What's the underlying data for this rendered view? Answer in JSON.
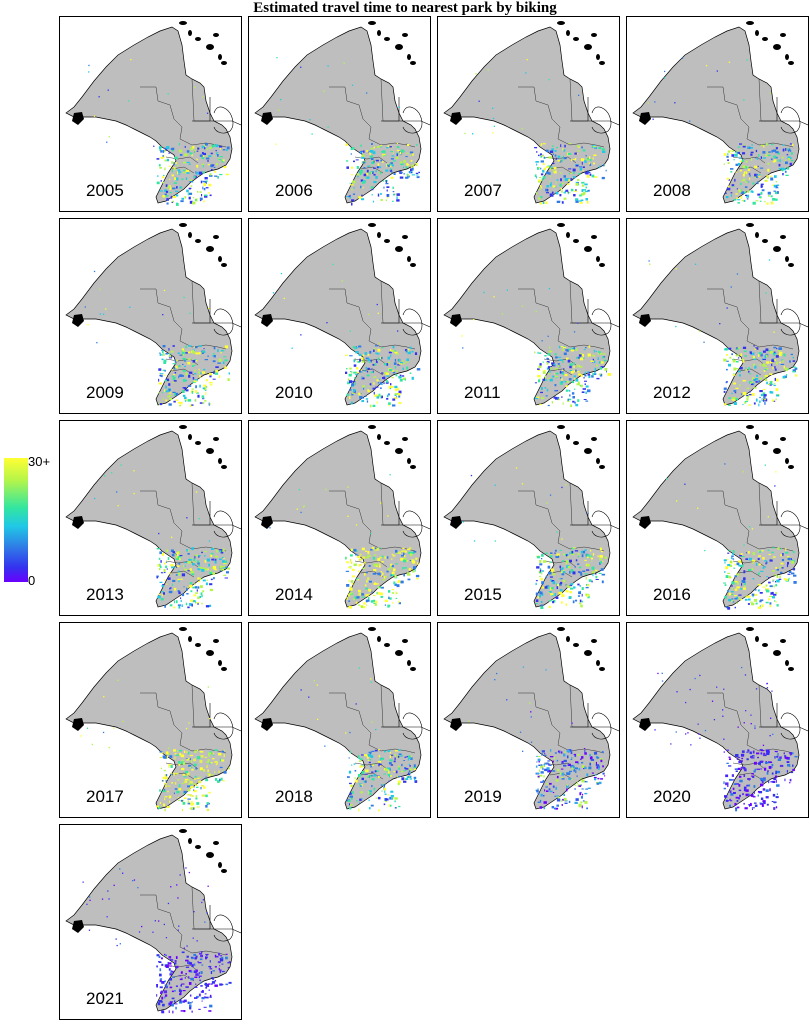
{
  "title": "Estimated travel time to nearest park by biking",
  "legend": {
    "max_label": "30+",
    "min_label": "0",
    "colors": [
      "#ffff33",
      "#33e6a0",
      "#2f7be6",
      "#6a00ff"
    ]
  },
  "colors": {
    "land": "#bebebe",
    "province_border": "#000000",
    "water_background": "#ffffff"
  },
  "panels": [
    {
      "year": "2005",
      "intensity": "mixed"
    },
    {
      "year": "2006",
      "intensity": "mixed"
    },
    {
      "year": "2007",
      "intensity": "mixed"
    },
    {
      "year": "2008",
      "intensity": "mixed"
    },
    {
      "year": "2009",
      "intensity": "mixed"
    },
    {
      "year": "2010",
      "intensity": "mixed"
    },
    {
      "year": "2011",
      "intensity": "mixed"
    },
    {
      "year": "2012",
      "intensity": "mixed"
    },
    {
      "year": "2013",
      "intensity": "mixed"
    },
    {
      "year": "2014",
      "intensity": "high"
    },
    {
      "year": "2015",
      "intensity": "mixed"
    },
    {
      "year": "2016",
      "intensity": "mixed"
    },
    {
      "year": "2017",
      "intensity": "high"
    },
    {
      "year": "2018",
      "intensity": "mixed"
    },
    {
      "year": "2019",
      "intensity": "low"
    },
    {
      "year": "2020",
      "intensity": "very-low"
    },
    {
      "year": "2021",
      "intensity": "very-low"
    }
  ]
}
